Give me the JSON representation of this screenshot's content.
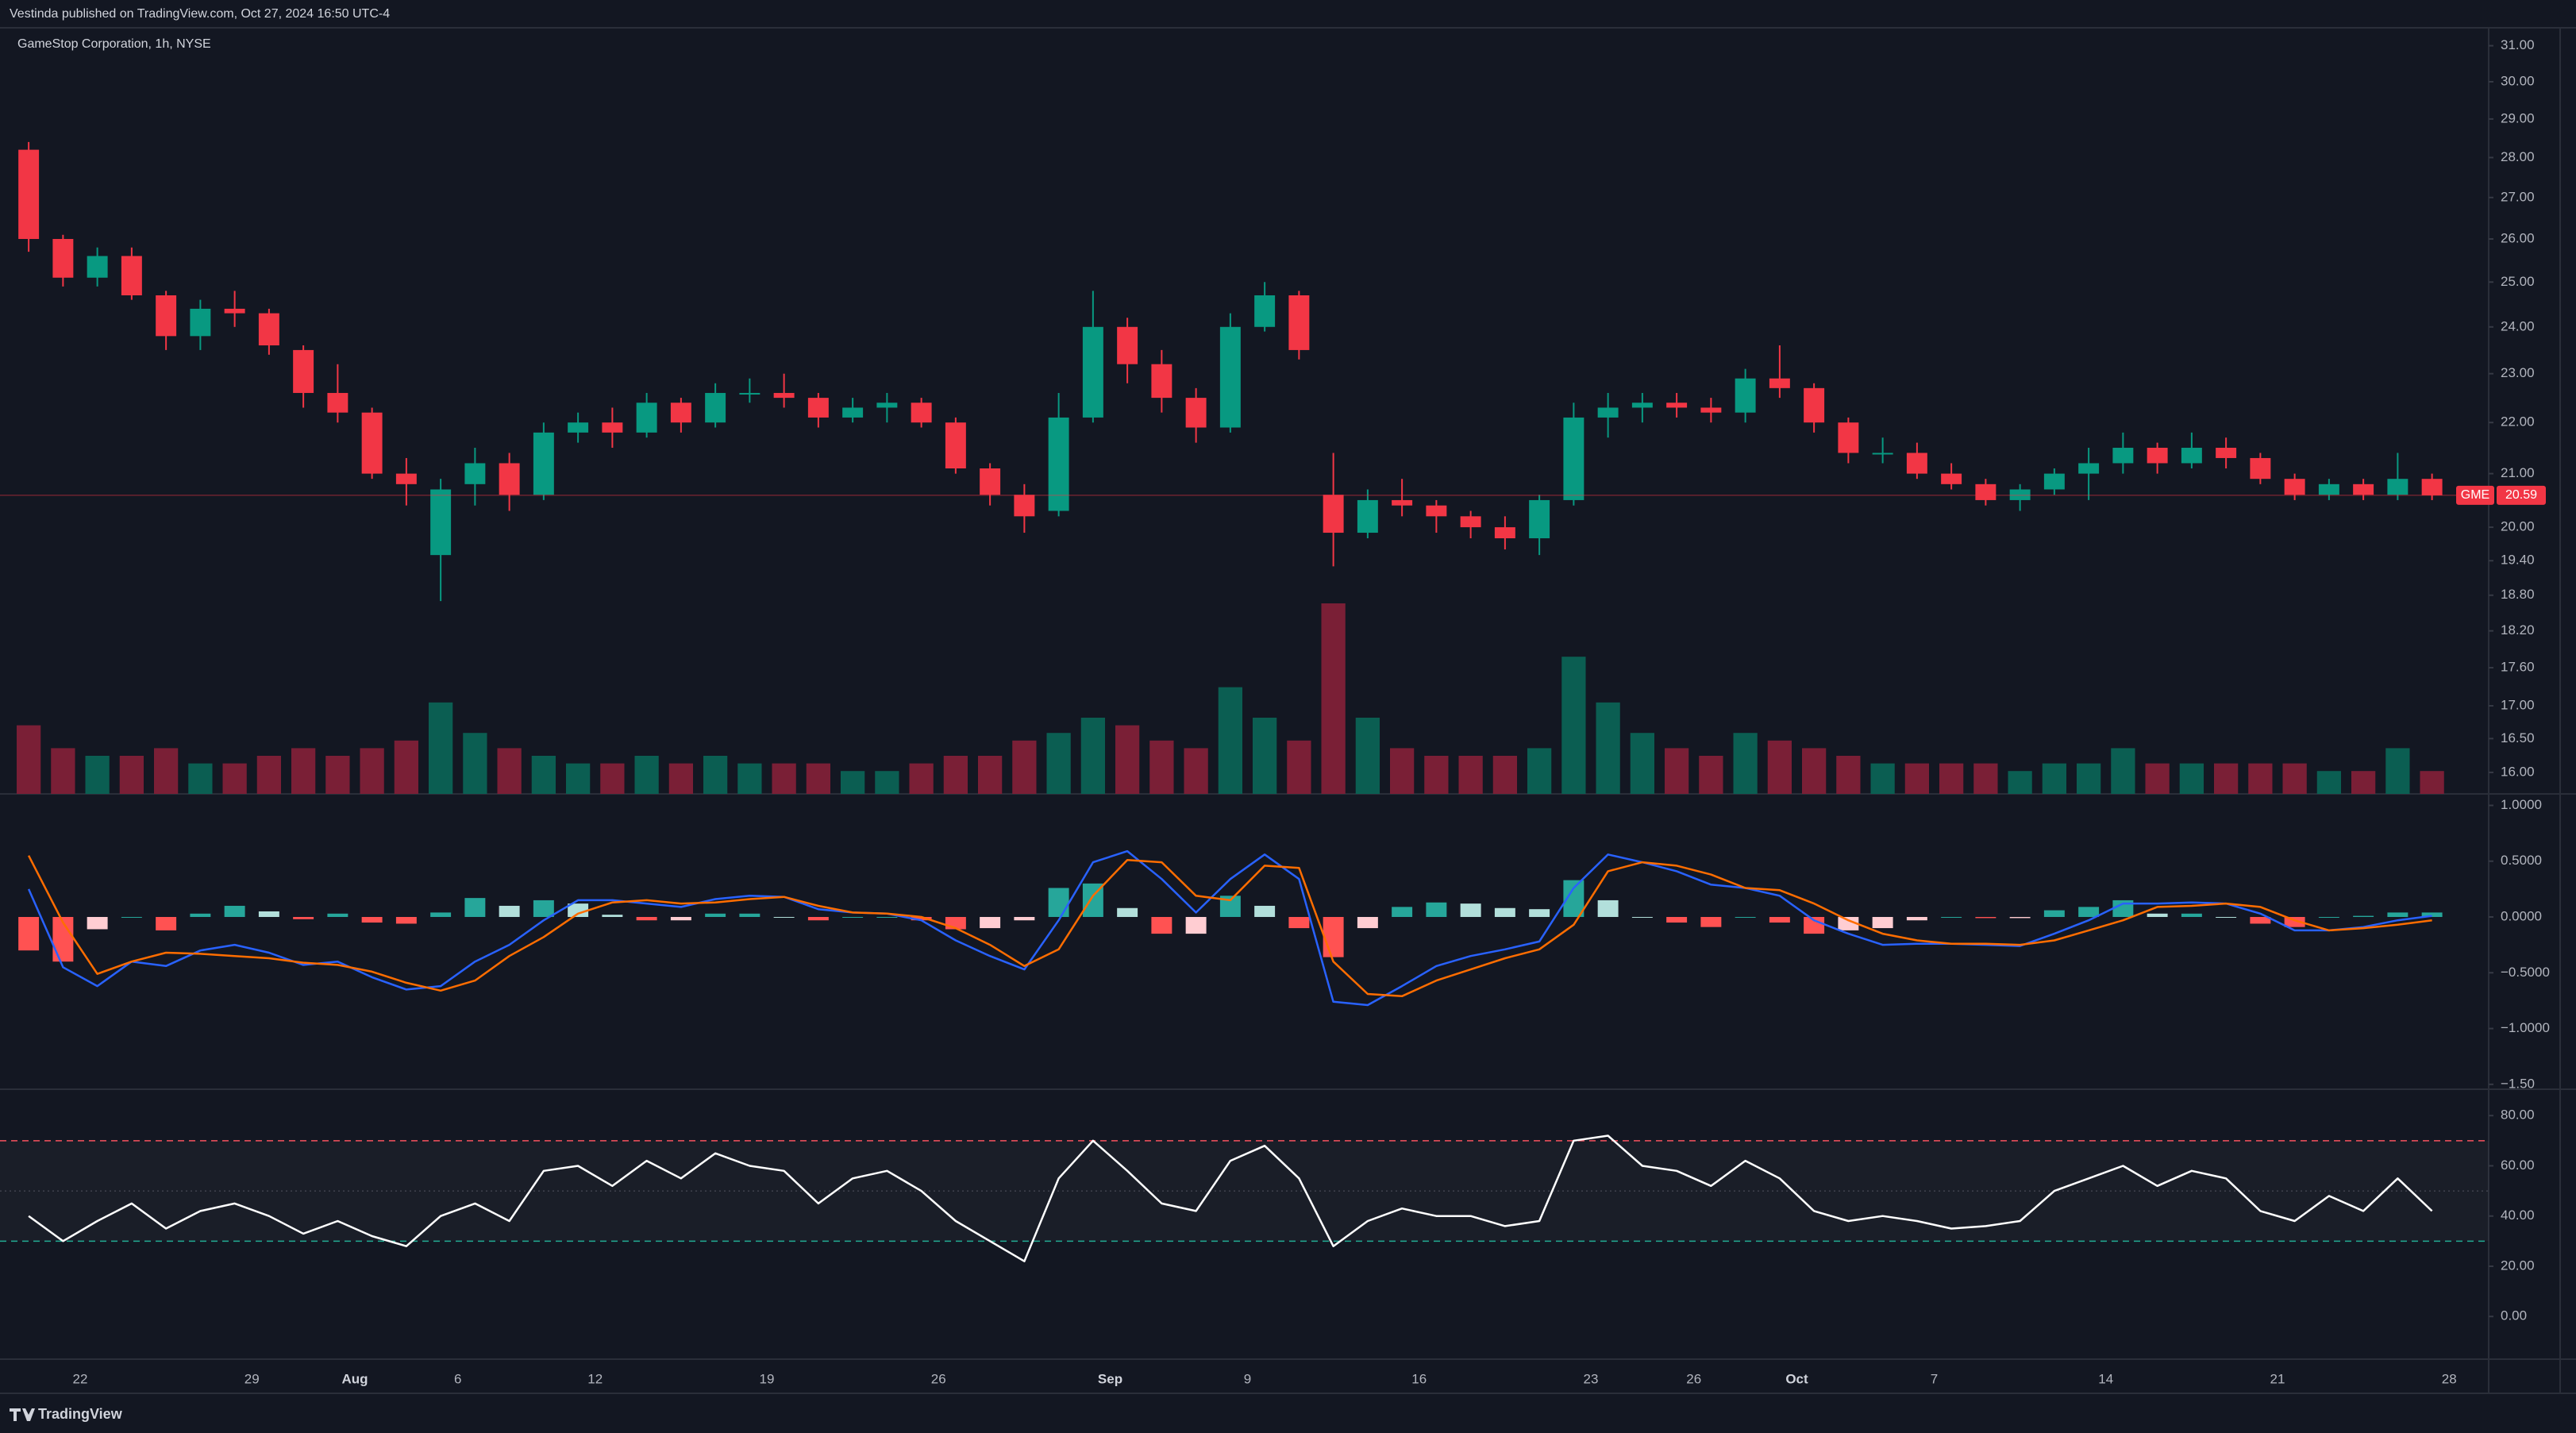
{
  "header": {
    "title": "Vestinda published on TradingView.com, Oct 27, 2024 16:50 UTC-4"
  },
  "footer": {
    "brand": "TradingView"
  },
  "chart_data": [
    {
      "type": "candlestick",
      "title": "GameStop Corporation, 1h, NYSE",
      "categories": [
        null,
        null,
        "22",
        null,
        null,
        null,
        null,
        "29",
        null,
        null,
        "Aug",
        null,
        null,
        "6",
        null,
        null,
        null,
        "12",
        null,
        null,
        null,
        null,
        "19",
        null,
        null,
        null,
        null,
        "26",
        null,
        null,
        null,
        null,
        "Sep",
        null,
        null,
        null,
        "9",
        null,
        null,
        null,
        null,
        "16",
        null,
        null,
        null,
        null,
        "23",
        null,
        null,
        "26",
        null,
        null,
        "Oct",
        null,
        null,
        null,
        "7",
        null,
        null,
        null,
        null,
        "14",
        null,
        null,
        null,
        null,
        "21",
        null,
        null,
        null,
        null,
        "28"
      ],
      "series": [
        {
          "name": "GME",
          "open": [
            28.2,
            26.0,
            25.1,
            25.6,
            24.7,
            23.8,
            24.4,
            24.3,
            23.5,
            22.6,
            22.2,
            21.0,
            19.5,
            20.8,
            21.2,
            20.6,
            21.8,
            22.0,
            21.8,
            22.4,
            22.0,
            22.6,
            22.6,
            22.5,
            22.1,
            22.3,
            22.4,
            22.0,
            21.1,
            20.6,
            20.3,
            22.1,
            24.0,
            23.2,
            22.5,
            21.9,
            24.0,
            24.7,
            20.6,
            19.9,
            20.5,
            20.4,
            20.2,
            20.0,
            19.8,
            20.5,
            22.1,
            22.3,
            22.4,
            22.3,
            22.2,
            22.9,
            22.7,
            22.0,
            21.4,
            21.4,
            21.0,
            20.8,
            20.5,
            20.7,
            21.0,
            21.2,
            21.5,
            21.2,
            21.5,
            21.3,
            20.9,
            20.6,
            20.8,
            20.6,
            20.9,
            null
          ],
          "high": [
            28.4,
            26.1,
            25.8,
            25.8,
            24.8,
            24.6,
            24.8,
            24.4,
            23.6,
            23.2,
            22.3,
            21.3,
            20.9,
            21.5,
            21.4,
            22.0,
            22.2,
            22.3,
            22.6,
            22.5,
            22.8,
            22.9,
            23.0,
            22.6,
            22.5,
            22.6,
            22.5,
            22.1,
            21.2,
            20.8,
            22.6,
            24.8,
            24.2,
            23.5,
            22.7,
            24.3,
            25.0,
            24.8,
            21.4,
            20.7,
            20.9,
            20.5,
            20.3,
            20.2,
            20.6,
            22.4,
            22.6,
            22.6,
            22.6,
            22.5,
            23.1,
            23.6,
            22.8,
            22.1,
            21.7,
            21.6,
            21.2,
            20.9,
            20.8,
            21.1,
            21.5,
            21.8,
            21.6,
            21.8,
            21.7,
            21.4,
            21.0,
            20.9,
            20.9,
            21.4,
            21.0,
            null
          ],
          "low": [
            25.7,
            24.9,
            24.9,
            24.6,
            23.5,
            23.5,
            24.0,
            23.4,
            22.3,
            22.0,
            20.9,
            20.4,
            18.7,
            20.4,
            20.3,
            20.5,
            21.6,
            21.5,
            21.7,
            21.8,
            21.9,
            22.4,
            22.3,
            21.9,
            22.0,
            22.0,
            21.9,
            21.0,
            20.4,
            19.9,
            20.2,
            22.0,
            22.8,
            22.2,
            21.6,
            21.8,
            23.9,
            23.3,
            19.3,
            19.8,
            20.2,
            19.9,
            19.8,
            19.6,
            19.5,
            20.4,
            21.7,
            22.0,
            22.1,
            22.0,
            22.0,
            22.5,
            21.8,
            21.2,
            21.2,
            20.9,
            20.7,
            20.4,
            20.3,
            20.6,
            20.5,
            21.0,
            21.0,
            21.1,
            21.1,
            20.8,
            20.5,
            20.5,
            20.5,
            20.5,
            20.5,
            null
          ],
          "close": [
            26.0,
            25.1,
            25.6,
            24.7,
            23.8,
            24.4,
            24.3,
            23.6,
            22.6,
            22.2,
            21.0,
            20.8,
            20.7,
            21.2,
            20.6,
            21.8,
            22.0,
            21.8,
            22.4,
            22.0,
            22.6,
            22.6,
            22.5,
            22.1,
            22.3,
            22.4,
            22.0,
            21.1,
            20.6,
            20.2,
            22.1,
            24.0,
            23.2,
            22.5,
            21.9,
            24.0,
            24.7,
            23.5,
            19.9,
            20.5,
            20.4,
            20.2,
            20.0,
            19.8,
            20.5,
            22.1,
            22.3,
            22.4,
            22.3,
            22.2,
            22.9,
            22.7,
            22.0,
            21.4,
            21.4,
            21.0,
            20.8,
            20.5,
            20.7,
            21.0,
            21.2,
            21.5,
            21.2,
            21.5,
            21.3,
            20.9,
            20.6,
            20.8,
            20.6,
            20.9,
            20.59,
            null
          ]
        }
      ],
      "volume": [
        9,
        6,
        5,
        5,
        6,
        4,
        4,
        5,
        6,
        5,
        6,
        7,
        12,
        8,
        6,
        5,
        4,
        4,
        5,
        4,
        5,
        4,
        4,
        4,
        3,
        3,
        4,
        5,
        5,
        7,
        8,
        10,
        9,
        7,
        6,
        14,
        10,
        7,
        25,
        10,
        6,
        5,
        5,
        5,
        6,
        18,
        12,
        8,
        6,
        5,
        8,
        7,
        6,
        5,
        4,
        4,
        4,
        4,
        3,
        4,
        4,
        6,
        4,
        4,
        4,
        4,
        4,
        3,
        3,
        6,
        3,
        null
      ],
      "up_color": "#089981",
      "down_color": "#f23645",
      "volume_up_color": "#0b5e52",
      "volume_down_color": "#7a1f36",
      "log_scale": true,
      "grid": false,
      "ylim": [
        15.69,
        31.51
      ],
      "yticks": [
        {
          "value": 16,
          "label": "16.00"
        },
        {
          "value": 16.5,
          "label": "16.50"
        },
        {
          "value": 17,
          "label": "17.00"
        },
        {
          "value": 17.6,
          "label": "17.60"
        },
        {
          "value": 18.2,
          "label": "18.20"
        },
        {
          "value": 18.8,
          "label": "18.80"
        },
        {
          "value": 19.4,
          "label": "19.40"
        },
        {
          "value": 20,
          "label": "20.00"
        },
        {
          "value": 21,
          "label": "21.00"
        },
        {
          "value": 22,
          "label": "22.00"
        },
        {
          "value": 23,
          "label": "23.00"
        },
        {
          "value": 24,
          "label": "24.00"
        },
        {
          "value": 25,
          "label": "25.00"
        },
        {
          "value": 26,
          "label": "26.00"
        },
        {
          "value": 27,
          "label": "27.00"
        },
        {
          "value": 28,
          "label": "28.00"
        },
        {
          "value": 29,
          "label": "29.00"
        },
        {
          "value": 30,
          "label": "30.00"
        },
        {
          "value": 31,
          "label": "31.00"
        }
      ]
    },
    {
      "type": "macd",
      "series": [
        {
          "color": "#2962ff",
          "values": [
            0.25,
            -0.45,
            -0.62,
            -0.4,
            -0.44,
            -0.3,
            -0.25,
            -0.32,
            -0.43,
            -0.4,
            -0.54,
            -0.65,
            -0.62,
            -0.4,
            -0.25,
            -0.03,
            0.15,
            0.15,
            0.12,
            0.09,
            0.16,
            0.19,
            0.18,
            0.07,
            0.04,
            0.03,
            -0.03,
            -0.21,
            -0.35,
            -0.47,
            -0.03,
            0.49,
            0.59,
            0.34,
            0.04,
            0.34,
            0.56,
            0.34,
            -0.76,
            -0.79,
            -0.62,
            -0.44,
            -0.35,
            -0.29,
            -0.22,
            0.26,
            0.56,
            0.49,
            0.41,
            0.29,
            0.26,
            0.19,
            -0.03,
            -0.15,
            -0.25,
            -0.24,
            -0.24,
            -0.25,
            -0.26,
            -0.15,
            -0.03,
            0.12,
            0.12,
            0.13,
            0.12,
            0.03,
            -0.12,
            -0.12,
            -0.09,
            -0.03,
            0.01,
            null
          ]
        },
        {
          "color": "#ff6d00",
          "values": [
            0.55,
            -0.05,
            -0.51,
            -0.4,
            -0.32,
            -0.33,
            -0.35,
            -0.37,
            -0.41,
            -0.43,
            -0.49,
            -0.59,
            -0.66,
            -0.57,
            -0.35,
            -0.18,
            0.03,
            0.13,
            0.15,
            0.12,
            0.13,
            0.16,
            0.18,
            0.1,
            0.04,
            0.03,
            0,
            -0.1,
            -0.25,
            -0.44,
            -0.29,
            0.19,
            0.51,
            0.49,
            0.19,
            0.15,
            0.46,
            0.44,
            -0.4,
            -0.69,
            -0.71,
            -0.57,
            -0.47,
            -0.37,
            -0.29,
            -0.07,
            0.41,
            0.49,
            0.46,
            0.38,
            0.26,
            0.24,
            0.12,
            -0.03,
            -0.15,
            -0.21,
            -0.24,
            -0.24,
            -0.25,
            -0.21,
            -0.12,
            -0.03,
            0.09,
            0.1,
            0.12,
            0.09,
            -0.03,
            -0.12,
            -0.1,
            -0.07,
            -0.03,
            null
          ]
        }
      ],
      "histogram": [
        -0.3,
        -0.4,
        -0.11,
        0,
        -0.12,
        0.03,
        0.1,
        0.05,
        -0.02,
        0.03,
        -0.05,
        -0.06,
        0.04,
        0.17,
        0.1,
        0.15,
        0.12,
        0.02,
        -0.03,
        -0.03,
        0.03,
        0.03,
        0,
        -0.03,
        0,
        0,
        -0.03,
        -0.11,
        -0.1,
        -0.03,
        0.26,
        0.3,
        0.08,
        -0.15,
        -0.15,
        0.19,
        0.1,
        -0.1,
        -0.36,
        -0.1,
        0.09,
        0.13,
        0.12,
        0.08,
        0.07,
        0.33,
        0.15,
        0,
        -0.05,
        -0.09,
        0,
        -0.05,
        -0.15,
        -0.12,
        -0.1,
        -0.03,
        0,
        -0.01,
        -0.01,
        0.06,
        0.09,
        0.15,
        0.03,
        0.03,
        0,
        -0.06,
        -0.09,
        0,
        0.01,
        0.04,
        0.04,
        null
      ],
      "histogram_colors": {
        "above_rising": "#26a69a",
        "above_falling": "#b2dfdb",
        "below_rising": "#ffcdd2",
        "below_falling": "#ff5252"
      },
      "grid": false,
      "ylim": [
        -1.544,
        1.103
      ],
      "yticks": [
        {
          "value": -1.5,
          "label": "−1.50"
        },
        {
          "value": -1,
          "label": "−1.0000"
        },
        {
          "value": -0.5,
          "label": "−0.5000"
        },
        {
          "value": 0,
          "label": "0.0000"
        },
        {
          "value": 0.5,
          "label": "0.5000"
        },
        {
          "value": 1,
          "label": "1.0000"
        }
      ]
    },
    {
      "type": "rsi",
      "values": [
        40,
        30,
        38,
        45,
        35,
        42,
        45,
        40,
        33,
        38,
        32,
        28,
        40,
        45,
        38,
        58,
        60,
        52,
        62,
        55,
        65,
        60,
        58,
        45,
        55,
        58,
        50,
        38,
        30,
        22,
        55,
        70,
        58,
        45,
        42,
        62,
        68,
        55,
        28,
        38,
        43,
        40,
        40,
        36,
        38,
        70,
        72,
        60,
        58,
        52,
        62,
        55,
        42,
        38,
        40,
        38,
        35,
        36,
        38,
        50,
        55,
        60,
        52,
        58,
        55,
        42,
        38,
        48,
        42,
        55,
        42,
        null
      ],
      "color": "#ffffff",
      "upper_band": 70,
      "middle_band": 50,
      "lower_band": 30,
      "upper_color": "#f7525f",
      "lower_color": "#22ab94",
      "middle_color": "#787b86",
      "grid": false,
      "ylim": [
        -17,
        90.5
      ],
      "yticks": [
        {
          "value": 0,
          "label": "0.00"
        },
        {
          "value": 20,
          "label": "20.00"
        },
        {
          "value": 40,
          "label": "40.00"
        },
        {
          "value": 60,
          "label": "60.00"
        },
        {
          "value": 80,
          "label": "80.00"
        }
      ]
    }
  ]
}
